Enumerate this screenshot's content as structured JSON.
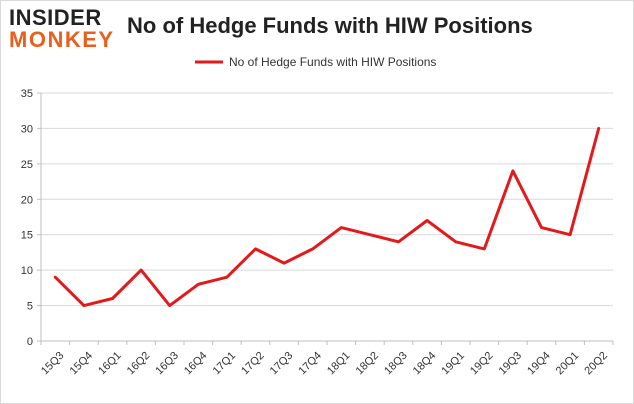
{
  "logo": {
    "line1": "INSIDER",
    "line2": "MONKEY"
  },
  "colors": {
    "series": "#e31a1c",
    "grid": "#d9d9d9",
    "axis": "#bfbfbf",
    "text": "#333333",
    "logo_accent": "#e8601c"
  },
  "chart_data": {
    "type": "line",
    "title": "No of Hedge Funds with HIW Positions",
    "xlabel": "",
    "ylabel": "",
    "categories": [
      "15Q3",
      "15Q4",
      "16Q1",
      "16Q2",
      "16Q3",
      "16Q4",
      "17Q1",
      "17Q2",
      "17Q3",
      "17Q4",
      "18Q1",
      "18Q2",
      "18Q3",
      "18Q4",
      "19Q1",
      "19Q2",
      "19Q3",
      "19Q4",
      "20Q1",
      "20Q2"
    ],
    "series": [
      {
        "name": "No of Hedge Funds with HIW Positions",
        "values": [
          9,
          5,
          6,
          10,
          5,
          8,
          9,
          13,
          11,
          13,
          16,
          15,
          14,
          17,
          14,
          13,
          24,
          16,
          15,
          30
        ]
      }
    ],
    "ylim": [
      0,
      35
    ],
    "yticks": [
      0,
      5,
      10,
      15,
      20,
      25,
      30,
      35
    ],
    "grid": true,
    "legend_position": "top-center"
  }
}
